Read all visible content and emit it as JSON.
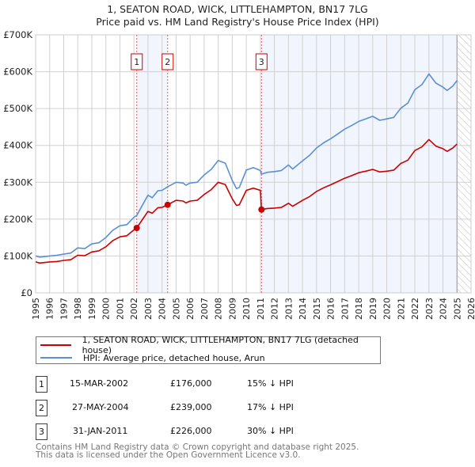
{
  "title": "1, SEATON ROAD, WICK, LITTLEHAMPTON, BN17 7LG",
  "subtitle": "Price paid vs. HM Land Registry's House Price Index (HPI)",
  "chart_data": {
    "type": "line",
    "xlim": [
      1995,
      2026
    ],
    "ylim": [
      0,
      700000
    ],
    "yticks": [
      {
        "v": 0,
        "label": "£0"
      },
      {
        "v": 100000,
        "label": "£100K"
      },
      {
        "v": 200000,
        "label": "£200K"
      },
      {
        "v": 300000,
        "label": "£300K"
      },
      {
        "v": 400000,
        "label": "£400K"
      },
      {
        "v": 500000,
        "label": "£500K"
      },
      {
        "v": 600000,
        "label": "£600K"
      },
      {
        "v": 700000,
        "label": "£700K"
      }
    ],
    "xticks": [
      "1995",
      "1996",
      "1997",
      "1998",
      "1999",
      "2000",
      "2001",
      "2002",
      "2003",
      "2004",
      "2005",
      "2006",
      "2007",
      "2008",
      "2009",
      "2010",
      "2011",
      "2012",
      "2013",
      "2014",
      "2015",
      "2016",
      "2017",
      "2018",
      "2019",
      "2020",
      "2021",
      "2022",
      "2023",
      "2024",
      "2025",
      "2026"
    ],
    "grid": true,
    "legend_placement": "below",
    "forecast_hatch_from": 2025.0,
    "shaded_ranges": [
      [
        2002.2,
        2004.4
      ],
      [
        2011.08,
        2025.0
      ]
    ],
    "series": [
      {
        "name": "1, SEATON ROAD, WICK, LITTLEHAMPTON, BN17 7LG (detached house)",
        "color": "#cc0000",
        "x": [
          1995,
          1995.3,
          1996,
          1996.5,
          1997,
          1997.5,
          1998,
          1998.5,
          1999,
          1999.5,
          2000,
          2000.5,
          2001,
          2001.5,
          2002,
          2002.2,
          2003,
          2003.3,
          2003.7,
          2004,
          2004.4,
          2005,
          2005.5,
          2005.7,
          2006,
          2006.5,
          2007,
          2007.5,
          2008,
          2008.5,
          2009,
          2009.3,
          2009.5,
          2010,
          2010.5,
          2011.0,
          2011.08,
          2011.5,
          2012,
          2012.5,
          2013,
          2013.3,
          2014,
          2014.5,
          2015,
          2015.5,
          2016,
          2016.5,
          2017,
          2017.5,
          2018,
          2018.5,
          2019,
          2019.5,
          2020,
          2020.5,
          2021,
          2021.5,
          2022,
          2022.5,
          2023,
          2023.5,
          2024,
          2024.3,
          2024.7,
          2025
        ],
        "y": [
          84000,
          81000,
          84000,
          85000,
          88000,
          90000,
          102000,
          101000,
          111000,
          114000,
          125000,
          142000,
          152000,
          155000,
          171000,
          176000,
          221000,
          216000,
          231000,
          232000,
          239000,
          251000,
          249000,
          244000,
          249000,
          251000,
          267000,
          280000,
          300000,
          294000,
          255000,
          237000,
          239000,
          278000,
          284000,
          278000,
          226000,
          229000,
          230000,
          232000,
          243000,
          235000,
          251000,
          261000,
          275000,
          285000,
          293000,
          302000,
          311000,
          318000,
          326000,
          330000,
          335000,
          328000,
          330000,
          333000,
          351000,
          360000,
          386000,
          396000,
          416000,
          398000,
          391000,
          384000,
          393000,
          404000
        ]
      },
      {
        "name": "HPI: Average price, detached house, Arun",
        "color": "#5b8fd4",
        "x": [
          1995,
          1995.3,
          1996,
          1996.5,
          1997,
          1997.5,
          1998,
          1998.5,
          1999,
          1999.5,
          2000,
          2000.5,
          2001,
          2001.5,
          2002,
          2002.2,
          2003,
          2003.3,
          2003.7,
          2004,
          2004.4,
          2005,
          2005.5,
          2005.7,
          2006,
          2006.5,
          2007,
          2007.5,
          2008,
          2008.5,
          2009,
          2009.3,
          2009.5,
          2010,
          2010.5,
          2011.0,
          2011.08,
          2011.5,
          2012,
          2012.5,
          2013,
          2013.3,
          2014,
          2014.5,
          2015,
          2015.5,
          2016,
          2016.5,
          2017,
          2017.5,
          2018,
          2018.5,
          2019,
          2019.5,
          2020,
          2020.5,
          2021,
          2021.5,
          2022,
          2022.5,
          2023,
          2023.5,
          2024,
          2024.3,
          2024.7,
          2025
        ],
        "y": [
          100000,
          97000,
          100000,
          102000,
          105000,
          108000,
          122000,
          120000,
          133000,
          136000,
          150000,
          170000,
          182000,
          185000,
          205000,
          210000,
          265000,
          258000,
          277000,
          278000,
          288000,
          300000,
          298000,
          292000,
          298000,
          300000,
          320000,
          335000,
          359000,
          352000,
          305000,
          283000,
          286000,
          333000,
          340000,
          332000,
          322000,
          327000,
          329000,
          332000,
          347000,
          336000,
          358000,
          373000,
          393000,
          407000,
          418000,
          431000,
          444000,
          454000,
          465000,
          472000,
          479000,
          468000,
          472000,
          476000,
          501000,
          515000,
          551000,
          565000,
          594000,
          569000,
          558000,
          549000,
          561000,
          576000
        ]
      }
    ]
  },
  "sales": [
    {
      "num": "1",
      "date": "15-MAR-2002",
      "price": "£176,000",
      "hpi": "15% ↓ HPI",
      "x": 2002.2,
      "y": 176000
    },
    {
      "num": "2",
      "date": "27-MAY-2004",
      "price": "£239,000",
      "hpi": "17% ↓ HPI",
      "x": 2004.4,
      "y": 239000
    },
    {
      "num": "3",
      "date": "31-JAN-2011",
      "price": "£226,000",
      "hpi": "30% ↓ HPI",
      "x": 2011.08,
      "y": 226000
    }
  ],
  "footer": [
    "Contains HM Land Registry data © Crown copyright and database right 2025.",
    "This data is licensed under the Open Government Licence v3.0."
  ]
}
